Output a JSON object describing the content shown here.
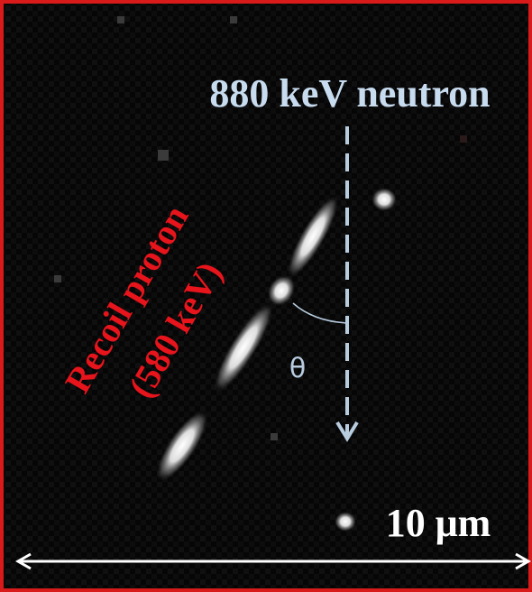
{
  "annotations": {
    "neutron": "880 keV neutron",
    "proton_line1": "Recoil proton",
    "proton_line2": "(580 keV)",
    "angle": "θ",
    "scale": "10 μm"
  }
}
